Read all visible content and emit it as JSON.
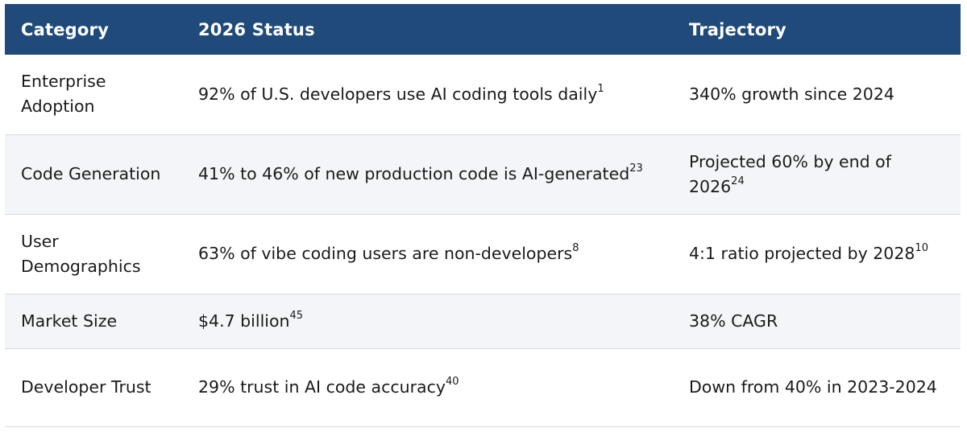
{
  "table": {
    "headers": [
      "Category",
      "2026 Status",
      "Trajectory"
    ],
    "rows": [
      {
        "category": "Enterprise Adoption",
        "status": "92% of U.S. developers use AI coding tools daily",
        "status_ref": "1",
        "trajectory": "340% growth since 2024",
        "trajectory_ref": ""
      },
      {
        "category": "Code Generation",
        "status": "41% to 46% of new production code is AI-generated",
        "status_ref": "23",
        "trajectory": "Projected 60% by end of 2026",
        "trajectory_ref": "24"
      },
      {
        "category": "User Demographics",
        "status": "63% of vibe coding users are non-developers",
        "status_ref": "8",
        "trajectory": "4:1 ratio projected by 2028",
        "trajectory_ref": "10"
      },
      {
        "category": "Market Size",
        "status": "$4.7 billion",
        "status_ref": "45",
        "trajectory": "38% CAGR",
        "trajectory_ref": ""
      },
      {
        "category": "Developer Trust",
        "status": "29% trust in AI code accuracy",
        "status_ref": "40",
        "trajectory": "Down from 40% in 2023-2024",
        "trajectory_ref": ""
      }
    ]
  },
  "colors": {
    "header_bg": "#1f4a7a",
    "header_text": "#ffffff",
    "zebra_bg": "#f3f5f8",
    "row_border": "#d4d9df"
  }
}
